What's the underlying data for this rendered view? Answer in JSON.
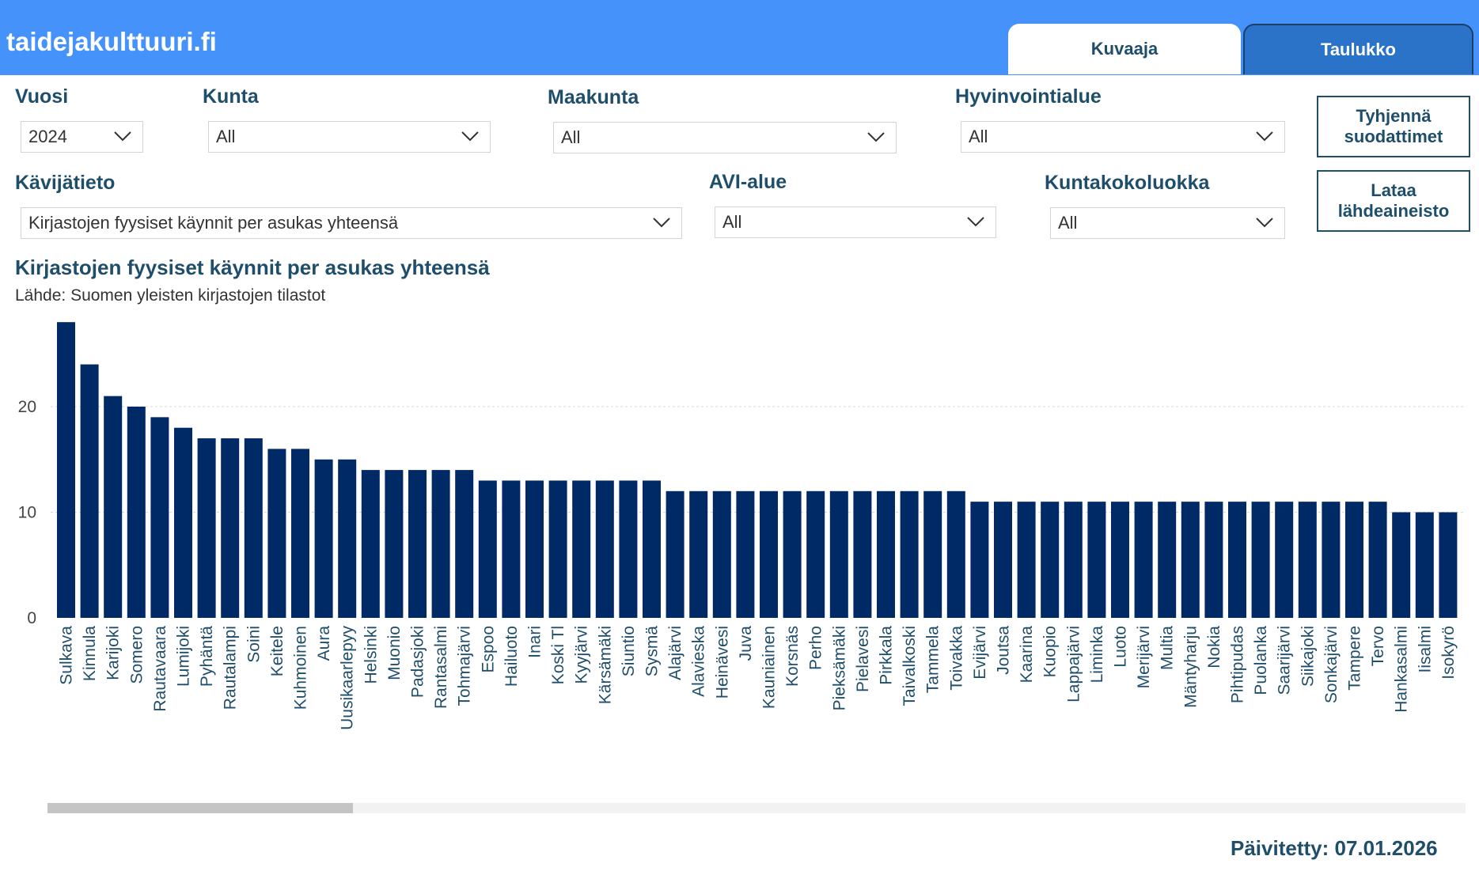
{
  "app": {
    "site_name": "taidejakulttuuri.fi"
  },
  "tabs": [
    {
      "label": "Kuvaaja",
      "active": true
    },
    {
      "label": "Taulukko",
      "active": false
    }
  ],
  "filters": {
    "vuosi": {
      "label": "Vuosi",
      "value": "2024"
    },
    "kunta": {
      "label": "Kunta",
      "value": "All"
    },
    "maakunta": {
      "label": "Maakunta",
      "value": "All"
    },
    "hyvinvointialue": {
      "label": "Hyvinvointialue",
      "value": "All"
    },
    "kavijatieto": {
      "label": "Kävijätieto",
      "value": "Kirjastojen fyysiset käynnit per asukas yhteensä"
    },
    "avi_alue": {
      "label": "AVI-alue",
      "value": "All"
    },
    "kuntakokoluokka": {
      "label": "Kuntakokoluokka",
      "value": "All"
    }
  },
  "buttons": {
    "clear_filters": "Tyhjennä suodattimet",
    "download_source": "Lataa lähdeaineisto"
  },
  "updated_label": "Päivitetty: 07.01.2026",
  "colors": {
    "header": "#4492fa",
    "bar": "#002a66",
    "text": "#1f4e6b"
  },
  "chart_data": {
    "type": "bar",
    "title": "Kirjastojen fyysiset käynnit per asukas yhteensä",
    "subtitle": "Lähde: Suomen yleisten kirjastojen tilastot",
    "ylim": [
      0,
      28
    ],
    "yticks": [
      0,
      10,
      20
    ],
    "grid": true,
    "categories": [
      "Sulkava",
      "Kinnula",
      "Karijoki",
      "Somero",
      "Rautavaara",
      "Lumijoki",
      "Pyhäntä",
      "Rautalampi",
      "Soini",
      "Keitele",
      "Kuhmoinen",
      "Aura",
      "Uusikaarlepyy",
      "Helsinki",
      "Muonio",
      "Padasjoki",
      "Rantasalmi",
      "Tohmajärvi",
      "Espoo",
      "Hailuoto",
      "Inari",
      "Koski Tl",
      "Kyyjärvi",
      "Kärsämäki",
      "Siuntio",
      "Sysmä",
      "Alajärvi",
      "Alavieska",
      "Heinävesi",
      "Juva",
      "Kauniainen",
      "Korsnäs",
      "Perho",
      "Pieksämäki",
      "Pielavesi",
      "Pirkkala",
      "Taivalkoski",
      "Tammela",
      "Toivakka",
      "Evijärvi",
      "Joutsa",
      "Kaarina",
      "Kuopio",
      "Lappajärvi",
      "Liminka",
      "Luoto",
      "Merijärvi",
      "Multia",
      "Mäntyharju",
      "Nokia",
      "Pihtipudas",
      "Puolanka",
      "Saarijärvi",
      "Siikajoki",
      "Sonkajärvi",
      "Tampere",
      "Tervo",
      "Hankasalmi",
      "Iisalmi",
      "Isokyrö"
    ],
    "values": [
      28,
      24,
      21,
      20,
      19,
      18,
      17,
      17,
      17,
      16,
      16,
      15,
      15,
      14,
      14,
      14,
      14,
      14,
      13,
      13,
      13,
      13,
      13,
      13,
      13,
      13,
      12,
      12,
      12,
      12,
      12,
      12,
      12,
      12,
      12,
      12,
      12,
      12,
      12,
      11,
      11,
      11,
      11,
      11,
      11,
      11,
      11,
      11,
      11,
      11,
      11,
      11,
      11,
      11,
      11,
      11,
      11,
      10,
      10,
      10
    ]
  }
}
